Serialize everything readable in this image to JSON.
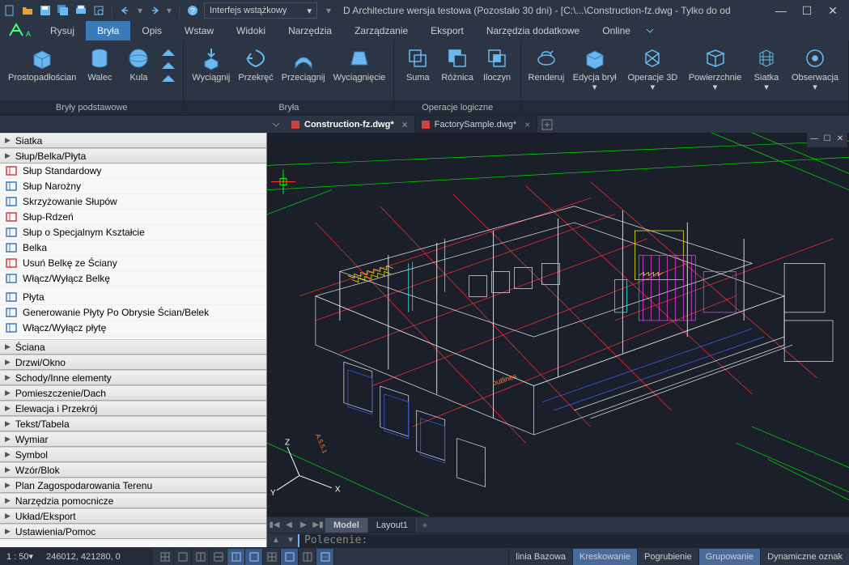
{
  "colors": {
    "bg": "#2b3544",
    "panel": "#232b38",
    "accent": "#3a7ab8",
    "icon_blue": "#6bb8f0",
    "text": "#d0d0d0",
    "canvas_bg": "#1a1f2a",
    "wire_white": "#e8e8e8",
    "wire_green": "#00ff00",
    "wire_red": "#ff3030",
    "wire_yellow": "#ffff00",
    "wire_magenta": "#ff40ff",
    "wire_cyan": "#40ffff",
    "wire_blue": "#4060ff",
    "wire_orange": "#ff8030"
  },
  "title": "D Architecture wersja testowa (Pozostało 30 dni)  -  [C:\\...\\Construction-fz.dwg - Tylko do od",
  "interface_combo": "Interfejs wstążkowy",
  "main_tabs": [
    "Rysuj",
    "Bryła",
    "Opis",
    "Wstaw",
    "Widoki",
    "Narzędzia",
    "Zarządzanie",
    "Eksport",
    "Narzędzia dodatkowe",
    "Online"
  ],
  "active_main_tab": 1,
  "ribbon": {
    "groups": [
      {
        "label": "Bryły podstawowe",
        "items": [
          {
            "label": "Prostopadłościan",
            "icon": "box"
          },
          {
            "label": "Walec",
            "icon": "cylinder"
          },
          {
            "label": "Kula",
            "icon": "sphere"
          }
        ],
        "stack": true
      },
      {
        "label": "Bryła",
        "items": [
          {
            "label": "Wyciągnij",
            "icon": "extrude"
          },
          {
            "label": "Przekręć",
            "icon": "revolve"
          },
          {
            "label": "Przeciągnij",
            "icon": "sweep"
          },
          {
            "label": "Wyciągnięcie",
            "icon": "loft"
          }
        ]
      },
      {
        "label": "Operacje logiczne",
        "items": [
          {
            "label": "Suma",
            "icon": "union"
          },
          {
            "label": "Różnica",
            "icon": "subtract"
          },
          {
            "label": "Iloczyn",
            "icon": "intersect"
          }
        ]
      },
      {
        "label": "",
        "items": [
          {
            "label": "Renderuj",
            "icon": "render",
            "drop": true
          },
          {
            "label": "Edycja brył ▾",
            "icon": "edit",
            "drop": true
          },
          {
            "label": "Operacje 3D ▾",
            "icon": "ops3d",
            "drop": true
          },
          {
            "label": "Powierzchnie ▾",
            "icon": "surface",
            "drop": true
          },
          {
            "label": "Siatka ▾",
            "icon": "mesh",
            "drop": true
          },
          {
            "label": "Obserwacja ▾",
            "icon": "observe",
            "drop": true
          }
        ]
      }
    ]
  },
  "doc_tabs": [
    {
      "name": "Construction-fz.dwg*",
      "active": true
    },
    {
      "name": "FactorySample.dwg*",
      "active": false
    }
  ],
  "sidebar": {
    "groups": [
      {
        "header": "Siatka",
        "items": []
      },
      {
        "header": "Słup/Belka/Płyta",
        "items": [
          {
            "label": "Słup Standardowy",
            "icon": "col-std",
            "c": "#d04040"
          },
          {
            "label": "Słup Narożny",
            "icon": "col-corner",
            "c": "#3a7ab8"
          },
          {
            "label": "Skrzyżowanie Słupów",
            "icon": "col-cross",
            "c": "#3a7ab8"
          },
          {
            "label": "Słup-Rdzeń",
            "icon": "col-core",
            "c": "#d04040"
          },
          {
            "label": "Słup o Specjalnym Kształcie",
            "icon": "col-spec",
            "c": "#3a7ab8"
          }
        ]
      },
      {
        "header": "",
        "items": [
          {
            "label": "Belka",
            "icon": "beam",
            "c": "#3a7ab8"
          },
          {
            "label": "Usuń Belkę ze Ściany",
            "icon": "beam-del",
            "c": "#d04040"
          },
          {
            "label": "Włącz/Wyłącz Belkę",
            "icon": "beam-tog",
            "c": "#3a7ab8"
          }
        ]
      },
      {
        "header": "",
        "items": [
          {
            "label": "Płyta",
            "icon": "slab",
            "c": "#3a7ab8"
          },
          {
            "label": "Generowanie Płyty Po Obrysie Ścian/Belek",
            "icon": "slab-gen",
            "c": "#3a7ab8"
          },
          {
            "label": "Włącz/Wyłącz płytę",
            "icon": "slab-tog",
            "c": "#3a7ab8"
          }
        ]
      },
      {
        "header": "Ściana",
        "items": []
      },
      {
        "header": "Drzwi/Okno",
        "items": []
      },
      {
        "header": "Schody/Inne elementy",
        "items": []
      },
      {
        "header": "Pomieszczenie/Dach",
        "items": []
      },
      {
        "header": "Elewacja i Przekrój",
        "items": []
      },
      {
        "header": "Tekst/Tabela",
        "items": []
      },
      {
        "header": "Wymiar",
        "items": []
      },
      {
        "header": "Symbol",
        "items": []
      },
      {
        "header": "Wzór/Blok",
        "items": []
      },
      {
        "header": "Plan Zagospodarowania Terenu",
        "items": []
      },
      {
        "header": "Narzędzia pomocnicze",
        "items": []
      },
      {
        "header": "Układ/Eksport",
        "items": []
      },
      {
        "header": "Ustawienia/Pomoc",
        "items": []
      }
    ]
  },
  "layout_tabs": {
    "active": "Model",
    "tabs": [
      "Model",
      "Layout1"
    ]
  },
  "command_prompt": "Polecenie: ",
  "canvas_label": "outlines",
  "axis_labels": {
    "x": "X",
    "y": "Y",
    "z": "Z"
  },
  "status": {
    "scale": "1 : 50▾",
    "coords": "246012, 421280, 0",
    "right": [
      {
        "label": "linia Bazowa",
        "on": false
      },
      {
        "label": "Kreskowanie",
        "on": true
      },
      {
        "label": "Pogrubienie",
        "on": false
      },
      {
        "label": "Grupowanie",
        "on": true
      },
      {
        "label": "Dynamiczne oznak",
        "on": false
      }
    ]
  }
}
